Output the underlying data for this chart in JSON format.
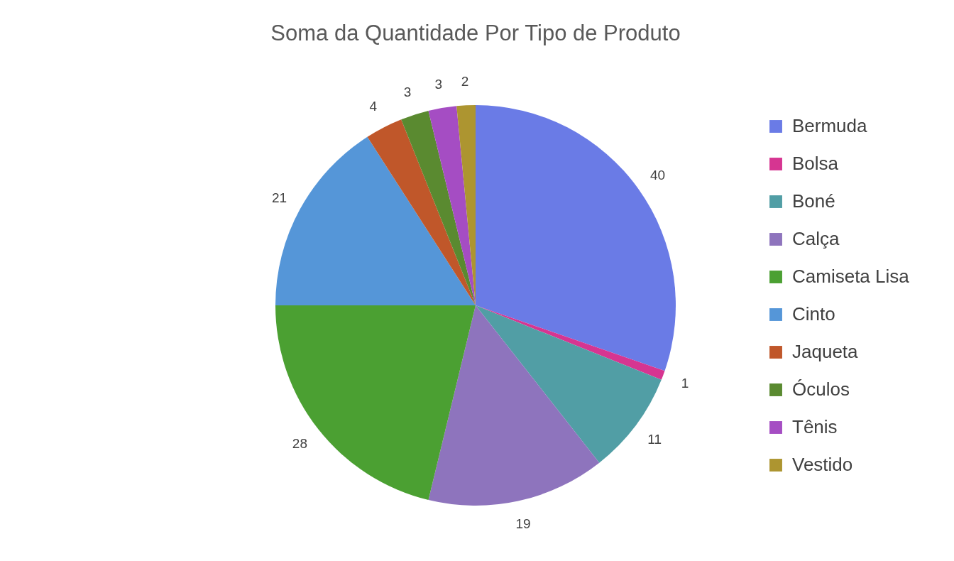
{
  "chart_data": {
    "type": "pie",
    "title": "Soma da Quantidade Por Tipo de Produto",
    "categories": [
      "Bermuda",
      "Bolsa",
      "Boné",
      "Calça",
      "Camiseta Lisa",
      "Cinto",
      "Jaqueta",
      "Óculos",
      "Tênis",
      "Vestido"
    ],
    "values": [
      40,
      1,
      11,
      19,
      28,
      21,
      4,
      3,
      3,
      2
    ],
    "colors": [
      "#6a7be6",
      "#d63591",
      "#519ea5",
      "#8e74bd",
      "#4ba032",
      "#5596d8",
      "#c0572a",
      "#5a8a30",
      "#a54dc3",
      "#ad9530"
    ],
    "data_labels": true,
    "legend": "right"
  }
}
